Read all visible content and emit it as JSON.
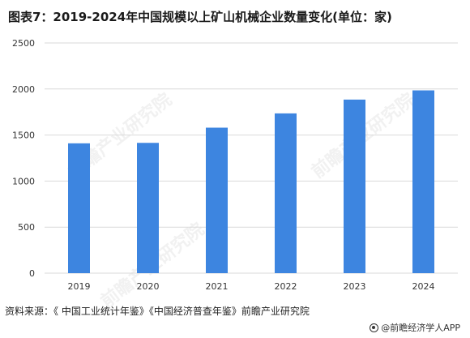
{
  "chart_data": {
    "type": "bar",
    "title": "图表7：2019-2024年中国规模以上矿山机械企业数量变化(单位：家)",
    "categories": [
      "2019",
      "2020",
      "2021",
      "2022",
      "2023",
      "2024"
    ],
    "values": [
      1410,
      1415,
      1580,
      1735,
      1885,
      1985
    ],
    "ylim": [
      0,
      2500
    ],
    "yticks": [
      0,
      500,
      1000,
      1500,
      2000,
      2500
    ],
    "grid": true,
    "bar_color": "#3d85e0",
    "grid_color": "#d9d9d9"
  },
  "source": "资料来源：《 中国工业统计年鉴》《中国经济普查年鉴》前瞻产业研究院",
  "brand": "@前瞻经济学人APP",
  "watermark": "前瞻产业研究院",
  "brand_icon": "qianzhan-logo-icon"
}
